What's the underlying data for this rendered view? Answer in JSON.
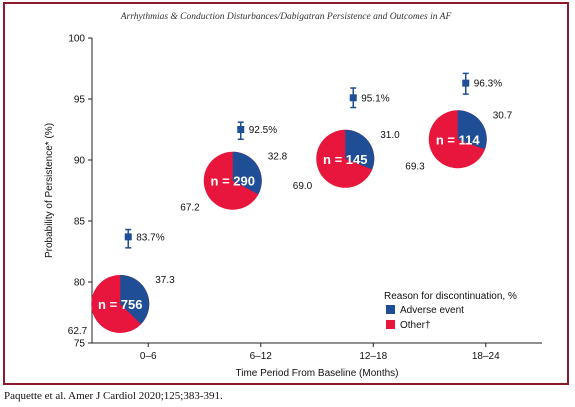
{
  "header": {
    "text": "Arrhythmias & Conduction Disturbances/Dabigatran Persistence and Outcomes in AF"
  },
  "citation": "Paquette et al. Amer J Cardiol 2020;125;383-391.",
  "colors": {
    "frame": "#8b1a2b",
    "adverse_event": "#1f4e96",
    "other": "#e8163c",
    "marker": "#1f4e96"
  },
  "chart_data": {
    "type": "scatter",
    "title": "",
    "xlabel": "Time Period From Baseline (Months)",
    "ylabel": "Probability of Persistence* (%)",
    "ylim": [
      75,
      100
    ],
    "yticks": [
      "75",
      "80",
      "85",
      "90",
      "95",
      "100"
    ],
    "categories": [
      "0–6",
      "6–12",
      "12–18",
      "18–24"
    ],
    "persistence": {
      "values": [
        83.7,
        92.5,
        95.1,
        96.3
      ],
      "labels": [
        "83.7%",
        "92.5%",
        "95.1%",
        "96.3%"
      ],
      "ci_low": [
        82.8,
        91.7,
        94.3,
        95.4
      ],
      "ci_high": [
        84.3,
        93.1,
        95.9,
        97.1
      ]
    },
    "pies": [
      {
        "n_label": "n = 756",
        "adverse": 37.3,
        "other": 62.7,
        "adverse_label": "37.3",
        "other_label": "62.7",
        "center_y": 78.2
      },
      {
        "n_label": "n = 290",
        "adverse": 32.8,
        "other": 67.2,
        "adverse_label": "32.8",
        "other_label": "67.2",
        "center_y": 88.3
      },
      {
        "n_label": "n = 145",
        "adverse": 31.0,
        "other": 69.0,
        "adverse_label": "31.0",
        "other_label": "69.0",
        "center_y": 90.1
      },
      {
        "n_label": "n = 114",
        "adverse": 30.7,
        "other": 69.3,
        "adverse_label": "30.7",
        "other_label": "69.3",
        "center_y": 91.7
      }
    ],
    "legend": {
      "title": "Reason for discontinuation, %",
      "placement": "bottom-right",
      "items": [
        {
          "label": "Adverse event",
          "color": "#1f4e96"
        },
        {
          "label": "Other†",
          "color": "#e8163c"
        }
      ]
    }
  }
}
